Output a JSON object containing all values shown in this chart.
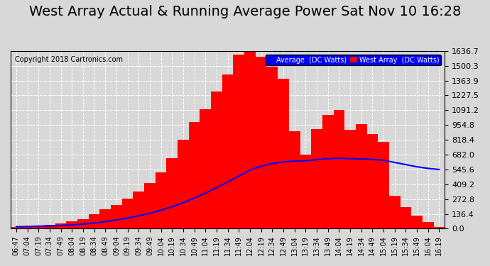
{
  "title": "West Array Actual & Running Average Power Sat Nov 10 16:28",
  "copyright": "Copyright 2018 Cartronics.com",
  "legend_avg": "Average  (DC Watts)",
  "legend_west": "West Array  (DC Watts)",
  "yticks": [
    0.0,
    136.4,
    272.8,
    409.2,
    545.6,
    682.0,
    818.4,
    954.8,
    1091.2,
    1227.5,
    1363.9,
    1500.3,
    1636.7
  ],
  "ymax": 1636.7,
  "ymin": 0.0,
  "background_color": "#d8d8d8",
  "plot_bg_color": "#d8d8d8",
  "grid_color": "white",
  "bar_color": "red",
  "avg_line_color": "blue",
  "title_fontsize": 14,
  "xtick_labels": [
    "06:47",
    "07:04",
    "07:19",
    "07:34",
    "07:49",
    "08:04",
    "08:19",
    "08:34",
    "08:49",
    "09:04",
    "09:19",
    "09:34",
    "09:49",
    "10:04",
    "10:19",
    "10:34",
    "10:49",
    "11:04",
    "11:19",
    "11:34",
    "11:49",
    "12:04",
    "12:19",
    "12:34",
    "12:49",
    "13:04",
    "13:19",
    "13:34",
    "13:49",
    "14:04",
    "14:19",
    "14:34",
    "14:49",
    "15:04",
    "15:19",
    "15:34",
    "15:49",
    "16:04",
    "16:19"
  ],
  "west_array_values": [
    18,
    22,
    28,
    35,
    50,
    65,
    90,
    130,
    180,
    220,
    280,
    340,
    420,
    520,
    650,
    820,
    980,
    1100,
    1260,
    1420,
    1600,
    1636,
    1580,
    1490,
    1380,
    900,
    680,
    920,
    1050,
    1090,
    910,
    960,
    870,
    800,
    300,
    200,
    120,
    60,
    18
  ],
  "avg_values": [
    18,
    20,
    23,
    26,
    30,
    35,
    42,
    52,
    65,
    80,
    98,
    118,
    142,
    170,
    202,
    240,
    282,
    328,
    378,
    430,
    485,
    540,
    575,
    600,
    615,
    622,
    625,
    635,
    645,
    648,
    645,
    642,
    638,
    630,
    610,
    590,
    570,
    555,
    545
  ]
}
